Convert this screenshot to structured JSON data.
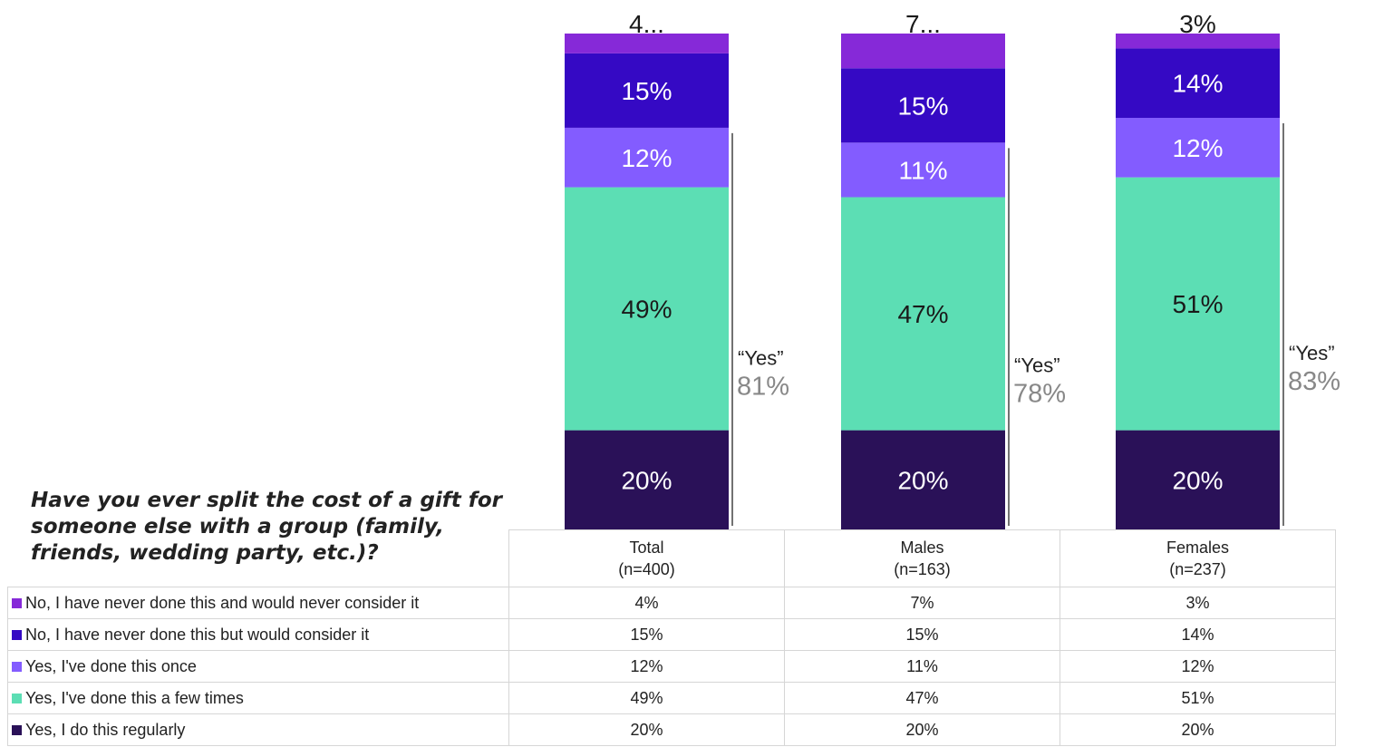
{
  "chart_data": {
    "type": "bar",
    "stacked": true,
    "question": "Have you ever split the cost of a gift for someone else with a group (family, friends, wedding party, etc.)?",
    "categories": [
      {
        "label": "Total",
        "n": "(n=400)"
      },
      {
        "label": "Males",
        "n": "(n=163)"
      },
      {
        "label": "Females",
        "n": "(n=237)"
      }
    ],
    "series": [
      {
        "name": "Yes, I do this regularly",
        "color": "#2a1158",
        "label_color": "#ffffff",
        "values": [
          20,
          20,
          20
        ],
        "labels": [
          "20%",
          "20%",
          "20%"
        ]
      },
      {
        "name": "Yes, I've done this a few times",
        "color": "#5cdeb4",
        "label_color": "#1a1a1a",
        "values": [
          49,
          47,
          51
        ],
        "labels": [
          "49%",
          "47%",
          "51%"
        ]
      },
      {
        "name": "Yes, I've done this once",
        "color": "#835cff",
        "label_color": "#ffffff",
        "values": [
          12,
          11,
          12
        ],
        "labels": [
          "12%",
          "11%",
          "12%"
        ]
      },
      {
        "name": "No, I have never done this but would consider it",
        "color": "#3509c4",
        "label_color": "#ffffff",
        "values": [
          15,
          15,
          14
        ],
        "labels": [
          "15%",
          "15%",
          "14%"
        ]
      },
      {
        "name": "No, I have never done this and would never consider it",
        "color": "#8629d8",
        "label_color": "#1a1a1a",
        "values": [
          4,
          7,
          3
        ],
        "labels": [
          "4...",
          "7...",
          "3%"
        ]
      }
    ],
    "table_labels": {
      "No, I have never done this and would never consider it": [
        "4%",
        "7%",
        "3%"
      ],
      "No, I have never done this but would consider it": [
        "15%",
        "15%",
        "14%"
      ],
      "Yes, I've done this once": [
        "12%",
        "11%",
        "12%"
      ],
      "Yes, I've done this a few times": [
        "49%",
        "47%",
        "51%"
      ],
      "Yes, I do this regularly": [
        "20%",
        "20%",
        "20%"
      ]
    },
    "yes_brackets": [
      {
        "label": "“Yes”",
        "value": "81%"
      },
      {
        "label": "“Yes”",
        "value": "78%"
      },
      {
        "label": "“Yes”",
        "value": "83%"
      }
    ],
    "table_row_order": [
      "No, I have never done this and would never consider it",
      "No, I have never done this but would consider it",
      "Yes, I've done this once",
      "Yes, I've done this a few times",
      "Yes, I do this regularly"
    ]
  }
}
